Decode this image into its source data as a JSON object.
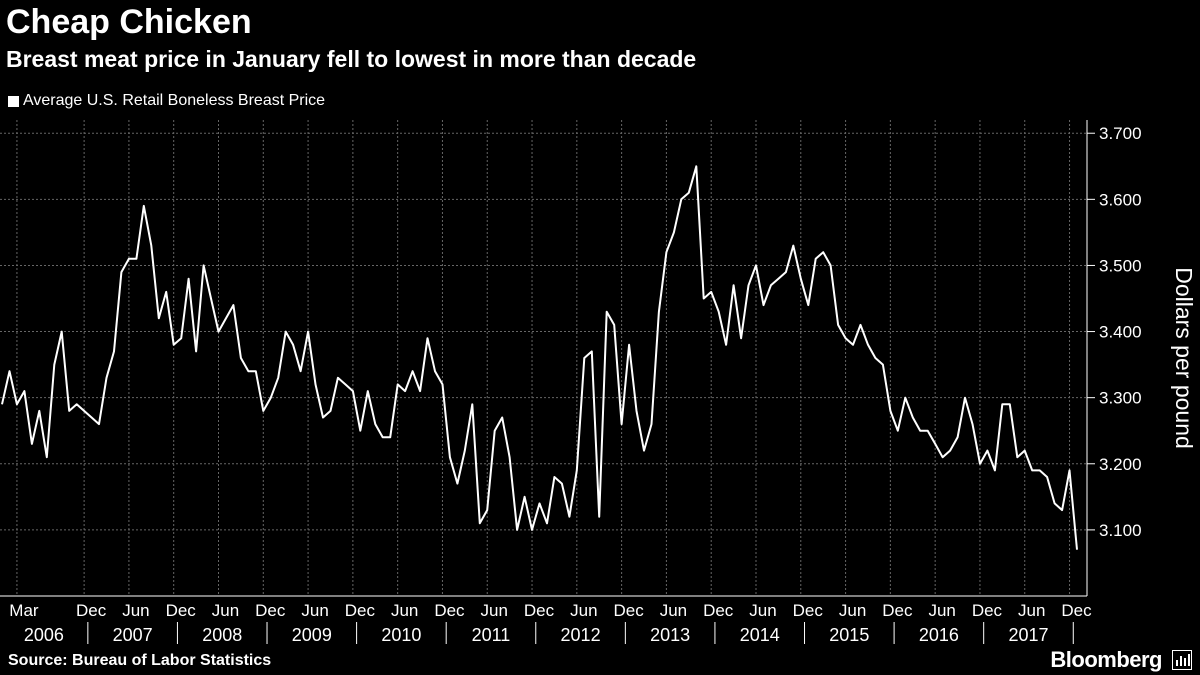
{
  "header": {
    "title": "Cheap Chicken",
    "subtitle": "Breast meat price in January fell to lowest in more than decade"
  },
  "legend": {
    "label": "Average U.S. Retail Boneless Breast Price"
  },
  "footer": {
    "source": "Source: Bureau of Labor Statistics",
    "brand": "Bloomberg"
  },
  "chart_data": {
    "type": "line",
    "title": "Cheap Chicken",
    "subtitle": "Breast meat price in January fell to lowest in more than decade",
    "xlabel": "",
    "ylabel": "Dollars per pound",
    "ylim": [
      3.0,
      3.72
    ],
    "yticks": [
      "3.100",
      "3.200",
      "3.300",
      "3.400",
      "3.500",
      "3.600",
      "3.700"
    ],
    "grid": true,
    "legend_position": "top-left",
    "start": "2006-01",
    "xtick_labels": [
      {
        "month": "Mar",
        "year": "2006"
      },
      {
        "month": "Dec",
        "year": ""
      },
      {
        "month": "Jun",
        "year": "2007"
      },
      {
        "month": "Dec",
        "year": ""
      },
      {
        "month": "Jun",
        "year": "2008"
      },
      {
        "month": "Dec",
        "year": ""
      },
      {
        "month": "Jun",
        "year": "2009"
      },
      {
        "month": "Dec",
        "year": ""
      },
      {
        "month": "Jun",
        "year": "2010"
      },
      {
        "month": "Dec",
        "year": ""
      },
      {
        "month": "Jun",
        "year": "2011"
      },
      {
        "month": "Dec",
        "year": ""
      },
      {
        "month": "Jun",
        "year": "2012"
      },
      {
        "month": "Dec",
        "year": ""
      },
      {
        "month": "Jun",
        "year": "2013"
      },
      {
        "month": "Dec",
        "year": ""
      },
      {
        "month": "Jun",
        "year": "2014"
      },
      {
        "month": "Dec",
        "year": ""
      },
      {
        "month": "Jun",
        "year": "2015"
      },
      {
        "month": "Dec",
        "year": ""
      },
      {
        "month": "Jun",
        "year": "2016"
      },
      {
        "month": "Dec",
        "year": ""
      },
      {
        "month": "Jun",
        "year": "2017"
      },
      {
        "month": "Dec",
        "year": ""
      }
    ],
    "series": [
      {
        "name": "Average U.S. Retail Boneless Breast Price",
        "values": [
          3.29,
          3.34,
          3.29,
          3.31,
          3.23,
          3.28,
          3.21,
          3.35,
          3.4,
          3.28,
          3.29,
          3.28,
          3.27,
          3.26,
          3.33,
          3.37,
          3.49,
          3.51,
          3.51,
          3.59,
          3.53,
          3.42,
          3.46,
          3.38,
          3.39,
          3.48,
          3.37,
          3.5,
          3.45,
          3.4,
          3.42,
          3.44,
          3.36,
          3.34,
          3.34,
          3.28,
          3.3,
          3.33,
          3.4,
          3.38,
          3.34,
          3.4,
          3.32,
          3.27,
          3.28,
          3.33,
          3.32,
          3.31,
          3.25,
          3.31,
          3.26,
          3.24,
          3.24,
          3.32,
          3.31,
          3.34,
          3.31,
          3.39,
          3.34,
          3.32,
          3.21,
          3.17,
          3.22,
          3.29,
          3.11,
          3.13,
          3.25,
          3.27,
          3.21,
          3.1,
          3.15,
          3.1,
          3.14,
          3.11,
          3.18,
          3.17,
          3.12,
          3.19,
          3.36,
          3.37,
          3.12,
          3.43,
          3.41,
          3.26,
          3.38,
          3.28,
          3.22,
          3.26,
          3.43,
          3.52,
          3.55,
          3.6,
          3.61,
          3.65,
          3.45,
          3.46,
          3.43,
          3.38,
          3.47,
          3.39,
          3.47,
          3.5,
          3.44,
          3.47,
          3.48,
          3.49,
          3.53,
          3.48,
          3.44,
          3.51,
          3.52,
          3.5,
          3.41,
          3.39,
          3.38,
          3.41,
          3.38,
          3.36,
          3.35,
          3.28,
          3.25,
          3.3,
          3.27,
          3.25,
          3.25,
          3.23,
          3.21,
          3.22,
          3.24,
          3.3,
          3.26,
          3.2,
          3.22,
          3.19,
          3.29,
          3.29,
          3.21,
          3.22,
          3.19,
          3.19,
          3.18,
          3.14,
          3.13,
          3.19,
          3.07
        ]
      }
    ]
  }
}
